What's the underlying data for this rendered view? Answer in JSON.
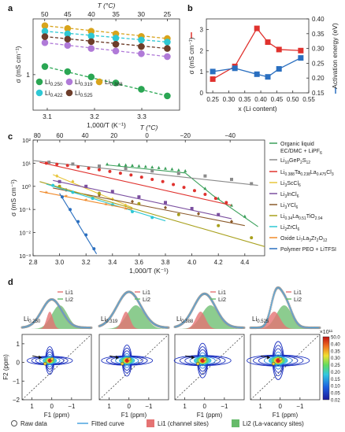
{
  "panel_labels": {
    "a": "a",
    "b": "b",
    "c": "c",
    "d": "d"
  },
  "chart_data": [
    {
      "id": "a",
      "type": "scatter",
      "xlabel": "1,000/T (K⁻¹)",
      "x2label": "T (°C)",
      "ylabel": "σ (mS cm⁻¹)",
      "xlim": [
        3.07,
        3.38
      ],
      "ylim_log": [
        0.45,
        3.5
      ],
      "x_ticks": [
        "3.1",
        "3.2",
        "3.3"
      ],
      "x_tick_values": [
        3.1,
        3.2,
        3.3
      ],
      "x2_ticks": [
        "50",
        "45",
        "40",
        "35",
        "30",
        "25"
      ],
      "x2_tick_values": [
        50,
        45,
        40,
        35,
        30,
        25
      ],
      "y_ticks": [
        "1"
      ],
      "y_tick_values": [
        1
      ],
      "series": [
        {
          "name": "Li0.250",
          "sub": "0.250",
          "color": "#2aa653",
          "x": [
            3.095,
            3.143,
            3.193,
            3.245,
            3.299,
            3.354
          ],
          "y": [
            1.2,
            1.07,
            0.95,
            0.83,
            0.72,
            0.62
          ]
        },
        {
          "name": "Li0.319",
          "sub": "0.319",
          "color": "#b07ad8",
          "x": [
            3.095,
            3.143,
            3.193,
            3.245,
            3.299,
            3.354
          ],
          "y": [
            2.05,
            1.93,
            1.8,
            1.7,
            1.6,
            1.5
          ]
        },
        {
          "name": "Li0.388",
          "sub": "0.388",
          "color": "#d8a41c",
          "x": [
            3.095,
            3.143,
            3.193,
            3.245,
            3.299,
            3.354
          ],
          "y": [
            3.0,
            2.82,
            2.65,
            2.5,
            2.36,
            2.25
          ]
        },
        {
          "name": "Li0.422",
          "sub": "0.422",
          "color": "#2ec8d4",
          "x": [
            3.095,
            3.143,
            3.193,
            3.245,
            3.299,
            3.354
          ],
          "y": [
            2.65,
            2.5,
            2.38,
            2.27,
            2.18,
            2.08
          ]
        },
        {
          "name": "Li0.525",
          "sub": "0.525",
          "color": "#6d3d2a",
          "x": [
            3.095,
            3.143,
            3.193,
            3.245,
            3.299,
            3.354
          ],
          "y": [
            2.35,
            2.22,
            2.1,
            1.98,
            1.88,
            1.8
          ]
        }
      ],
      "legend_prefix": "Li"
    },
    {
      "id": "b",
      "type": "line",
      "xlabel": "x (Li content)",
      "ylabel": "σ (mS cm⁻¹)",
      "y2label": "Activation energy (eV)",
      "xlim": [
        0.23,
        0.55
      ],
      "ylim": [
        0,
        3.5
      ],
      "y2lim": [
        0.15,
        0.4
      ],
      "x_ticks": [
        "0.25",
        "0.30",
        "0.35",
        "0.40",
        "0.45",
        "0.50",
        "0.55"
      ],
      "x_tick_values": [
        0.25,
        0.3,
        0.35,
        0.4,
        0.45,
        0.5,
        0.55
      ],
      "y_ticks": [
        "0",
        "1",
        "2",
        "3"
      ],
      "y_tick_values": [
        0,
        1,
        2,
        3
      ],
      "y2_ticks": [
        "0.15",
        "0.20",
        "0.25",
        "0.30",
        "0.35",
        "0.40"
      ],
      "y2_tick_values": [
        0.15,
        0.2,
        0.25,
        0.3,
        0.35,
        0.4
      ],
      "series": [
        {
          "name": "σ",
          "color": "#e0322e",
          "x": [
            0.25,
            0.319,
            0.388,
            0.422,
            0.457,
            0.525
          ],
          "y": [
            0.65,
            1.25,
            3.05,
            2.4,
            2.05,
            2.0
          ]
        },
        {
          "name": "Activation energy",
          "color": "#2a6fc0",
          "x": [
            0.25,
            0.319,
            0.388,
            0.422,
            0.457,
            0.525
          ],
          "y": [
            0.222,
            0.233,
            0.213,
            0.204,
            0.231,
            0.268
          ]
        }
      ]
    },
    {
      "id": "c",
      "type": "scatter",
      "xlabel": "1,000/T (K⁻¹)",
      "x2label": "T (°C)",
      "ylabel": "σ (mS cm⁻¹)",
      "xlim": [
        2.8,
        4.55
      ],
      "ylog_range": [
        -3,
        2
      ],
      "x_ticks": [
        "2.8",
        "3.0",
        "3.2",
        "3.4",
        "3.6",
        "3.8",
        "4.0",
        "4.2",
        "4.4"
      ],
      "x_tick_values": [
        2.8,
        3.0,
        3.2,
        3.4,
        3.6,
        3.8,
        4.0,
        4.2,
        4.4
      ],
      "x2_ticks": [
        "80",
        "60",
        "40",
        "20",
        "0",
        "−20",
        "−40"
      ],
      "x2_tick_values": [
        80,
        60,
        40,
        20,
        0,
        -20,
        -40
      ],
      "y_ticks": [
        "10⁻³",
        "10⁻²",
        "10⁻¹",
        "10⁰",
        "10¹",
        "10²"
      ],
      "y_tick_values": [
        -3,
        -2,
        -1,
        0,
        1,
        2
      ],
      "series": [
        {
          "name": "Organic liquid EC/DMC + LiPF6",
          "label1": "Organic liquid",
          "label2": "EC/DMC + LiPF",
          "sub2": "6",
          "marker": "triangle",
          "color": "#3aa05a",
          "line": [
            [
              3.35,
              8.5
            ],
            [
              3.95,
              3.8
            ],
            [
              4.16,
              0.4
            ],
            [
              4.5,
              0.018
            ]
          ],
          "x": [
            3.36,
            3.45,
            3.5,
            3.55,
            3.6,
            3.65,
            3.7,
            3.75,
            3.8,
            3.85,
            3.9,
            3.95,
            4.1,
            4.2,
            4.3,
            4.4
          ],
          "y": [
            9.0,
            8.6,
            8.2,
            7.9,
            7.5,
            7.1,
            6.7,
            6.3,
            5.9,
            5.5,
            5.0,
            4.6,
            0.8,
            0.3,
            0.15,
            0.05
          ]
        },
        {
          "name": "Li10GeP2S12",
          "html": "Li<sub>10</sub>GeP<sub>2</sub>S<sub>12</sub>",
          "marker": "square",
          "color": "#8a8a8a",
          "line": [
            [
              2.8,
              13
            ],
            [
              4.5,
              1.1
            ]
          ],
          "x": [
            2.92,
            3.1,
            3.3,
            3.5,
            3.7,
            3.9,
            4.1,
            4.3,
            4.45
          ],
          "y": [
            11,
            9.2,
            7.5,
            5.9,
            4.6,
            3.6,
            2.8,
            2.0,
            1.3
          ]
        },
        {
          "name": "Li0.388Ta0.238La0.475Cl3",
          "marker": "circle",
          "color": "#e0322e",
          "line": [
            [
              2.85,
              11
            ],
            [
              4.3,
              0.15
            ]
          ],
          "x": [
            2.9,
            2.98,
            3.06,
            3.14,
            3.22,
            3.3,
            3.38,
            3.46,
            3.54,
            3.62,
            3.7,
            3.78,
            3.86,
            3.94,
            4.02,
            4.1,
            4.18,
            4.26
          ],
          "y": [
            10,
            9.0,
            8.0,
            7.0,
            6.0,
            5.2,
            4.4,
            3.7,
            3.1,
            2.5,
            2.0,
            1.6,
            1.2,
            0.9,
            0.65,
            0.45,
            0.3,
            0.2
          ]
        },
        {
          "name": "Li3ScCl6",
          "marker": "diamond",
          "color": "#e8c53a",
          "line": [
            [
              2.95,
              3.2
            ],
            [
              3.55,
              0.12
            ]
          ],
          "x": [
            2.98,
            3.1,
            3.2,
            3.3,
            3.4,
            3.5
          ],
          "y": [
            2.8,
            1.6,
            0.9,
            0.5,
            0.28,
            0.15
          ]
        },
        {
          "name": "Li3InCl6",
          "marker": "square",
          "color": "#7b4fa0",
          "line": [
            [
              2.95,
              1.8
            ],
            [
              4.3,
              0.04
            ]
          ],
          "x": [
            3.0,
            3.2,
            3.4,
            3.6,
            3.8,
            4.0,
            4.2
          ],
          "y": [
            1.6,
            1.0,
            0.6,
            0.35,
            0.2,
            0.11,
            0.06
          ]
        },
        {
          "name": "Li3YCl6",
          "marker": "diamond",
          "color": "#8b5a2b",
          "line": [
            [
              2.95,
              0.85
            ],
            [
              4.4,
              0.02
            ]
          ],
          "x": [
            3.05,
            3.3,
            3.55,
            3.8,
            4.05,
            4.3
          ],
          "y": [
            0.7,
            0.42,
            0.22,
            0.12,
            0.065,
            0.03
          ]
        },
        {
          "name": "Li0.34La0.51TiO2.94",
          "marker": "circle",
          "color": "#a8a01c",
          "line": [
            [
              2.85,
              1.6
            ],
            [
              4.55,
              0.0025
            ]
          ],
          "x": [
            3.0,
            3.3,
            3.6,
            3.9,
            4.2,
            4.45
          ],
          "y": [
            1.0,
            0.5,
            0.18,
            0.06,
            0.02,
            0.006
          ]
        },
        {
          "name": "Li2ZrCl6",
          "marker": "circle",
          "color": "#2ec8d4",
          "line": [
            [
              2.9,
              1.25
            ],
            [
              3.8,
              0.032
            ]
          ],
          "x": [
            2.95,
            3.1,
            3.25,
            3.4,
            3.55,
            3.7
          ],
          "y": [
            1.1,
            0.55,
            0.3,
            0.16,
            0.08,
            0.045
          ]
        },
        {
          "name": "Oxide Li7La3Zr2O12",
          "marker": "star",
          "color": "#f08a2a",
          "line": [
            [
              2.85,
              0.6
            ],
            [
              3.55,
              0.1
            ]
          ],
          "x": [
            2.9,
            3.05,
            3.2,
            3.35,
            3.5
          ],
          "y": [
            0.55,
            0.38,
            0.26,
            0.17,
            0.11
          ]
        },
        {
          "name": "Polymer PEO + LiTFSI",
          "marker": "circle",
          "color": "#2a6fc0",
          "line": [
            [
              3.0,
              0.5
            ],
            [
              3.28,
              0.0012
            ]
          ],
          "x": [
            3.02,
            3.08,
            3.14,
            3.2,
            3.26
          ],
          "y": [
            0.35,
            0.1,
            0.03,
            0.008,
            0.002
          ]
        }
      ]
    },
    {
      "id": "d",
      "type": "heatmap",
      "xlabel": "F1 (ppm)",
      "ylabel": "F2 (ppm)",
      "xlim": [
        1.5,
        -2
      ],
      "ylim": [
        1.5,
        -2
      ],
      "x_ticks": [
        "1",
        "0",
        "−1"
      ],
      "x_tick_values": [
        1,
        0,
        -1
      ],
      "y_ticks": [
        "−2",
        "−1",
        "0",
        "1"
      ],
      "y_tick_values": [
        -2,
        -1,
        0,
        1
      ],
      "colorbar": {
        "title": "×10¹¹",
        "ticks": [
          "50.0",
          "0.40",
          "0.35",
          "0.30",
          "0.25",
          "0.20",
          "0.15",
          "0.10",
          "0.05",
          "0.02"
        ]
      },
      "line_labels": {
        "li1": "Li1",
        "li2": "Li2"
      },
      "panels": [
        {
          "label": "Li",
          "sub": "0.250"
        },
        {
          "label": "Li",
          "sub": "0.319"
        },
        {
          "label": "Li",
          "sub": "0.388"
        },
        {
          "label": "Li",
          "sub": "0.525"
        }
      ],
      "legend": {
        "raw": "Raw data",
        "fit": "Fitted curve",
        "li1": "Li1 (channel sites)",
        "li2": "Li2 (La-vacancy sites)"
      }
    }
  ],
  "colors": {
    "li1": "#e57373",
    "li2": "#66bb6a",
    "fit": "#4aa3df",
    "raw": "#999999"
  }
}
